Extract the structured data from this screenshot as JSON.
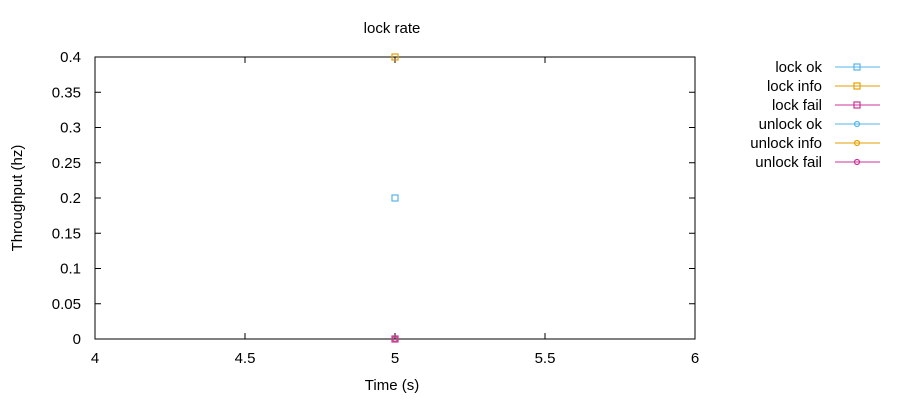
{
  "chart_data": {
    "type": "scatter",
    "title": "lock rate",
    "xlabel": "Time (s)",
    "ylabel": "Throughput (hz)",
    "xlim": [
      4,
      6
    ],
    "ylim": [
      0,
      0.4
    ],
    "x_ticks": [
      "4",
      "4.5",
      "5",
      "5.5",
      "6"
    ],
    "y_ticks": [
      "0",
      "0.05",
      "0.1",
      "0.15",
      "0.2",
      "0.25",
      "0.3",
      "0.35",
      "0.4"
    ],
    "grid": false,
    "legend_position": "outside-right-top",
    "series": [
      {
        "name": "lock ok",
        "color": "#56b4e9",
        "marker": "square",
        "points": [
          [
            5,
            0.2
          ]
        ]
      },
      {
        "name": "lock info",
        "color": "#e69f00",
        "marker": "square",
        "points": [
          [
            5,
            0.4
          ]
        ]
      },
      {
        "name": "lock fail",
        "color": "#cc3399",
        "marker": "square",
        "points": [
          [
            5,
            0
          ]
        ]
      },
      {
        "name": "unlock ok",
        "color": "#56b4e9",
        "marker": "circle",
        "points": [
          [
            5,
            0
          ]
        ]
      },
      {
        "name": "unlock info",
        "color": "#e69f00",
        "marker": "circle",
        "points": [
          [
            5,
            0
          ]
        ]
      },
      {
        "name": "unlock fail",
        "color": "#cc3399",
        "marker": "circle",
        "points": [
          [
            5,
            0
          ]
        ]
      }
    ]
  }
}
